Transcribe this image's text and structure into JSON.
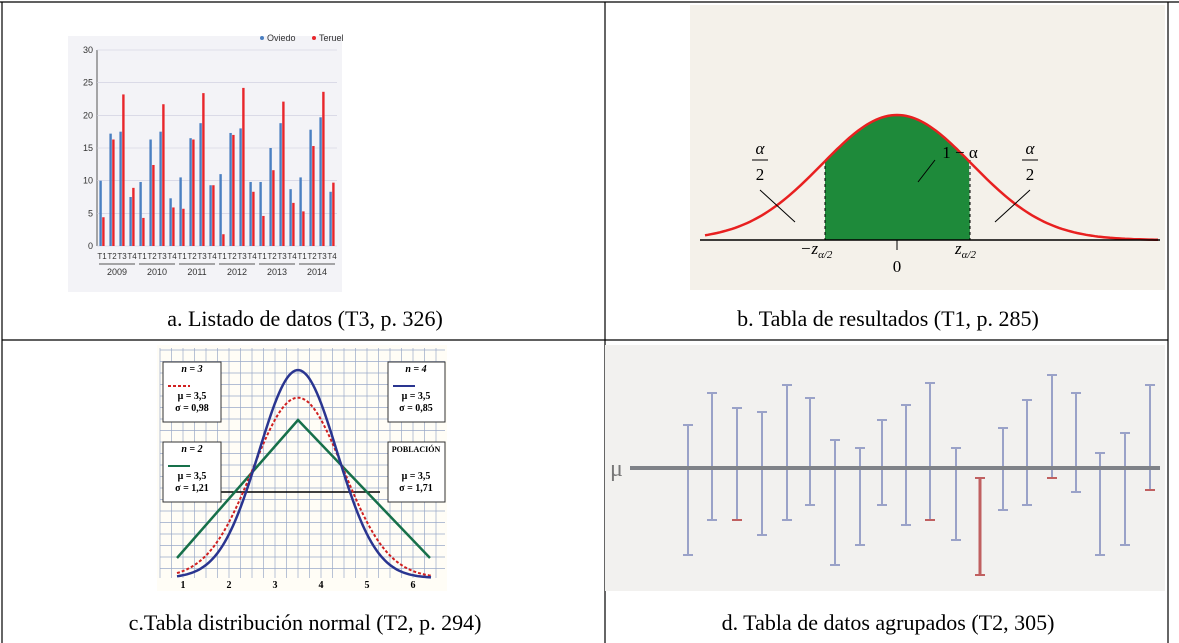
{
  "panels": [
    {
      "caption": "a. Listado de datos (T3, p. 326)",
      "chart": {
        "type": "bar",
        "categories": [
          "T1",
          "T2",
          "T3",
          "T4",
          "T1",
          "T2",
          "T3",
          "T4",
          "T1",
          "T2",
          "T3",
          "T4",
          "T1",
          "T2",
          "T3",
          "T4",
          "T1",
          "T2",
          "T3",
          "T4",
          "T1",
          "T2",
          "T3",
          "T4"
        ],
        "groups": [
          "2009",
          "2010",
          "2011",
          "2012",
          "2013",
          "2014"
        ],
        "series": [
          {
            "name": "Oviedo",
            "color": "#4a7fc1",
            "values": [
              10,
              17.2,
              17.5,
              7.5,
              9.8,
              16.3,
              17.5,
              7.3,
              10.5,
              16.5,
              18.8,
              9.3,
              11,
              17.3,
              18,
              9.8,
              9.8,
              15,
              18.8,
              8.7,
              10.5,
              17.8,
              19.7,
              8.3
            ]
          },
          {
            "name": "Teruel",
            "color": "#e8262b",
            "values": [
              4.4,
              16.3,
              23.2,
              8.9,
              4.3,
              12.4,
              21.7,
              5.9,
              5.7,
              16.3,
              23.4,
              9.3,
              1.8,
              17,
              24.2,
              8.3,
              4.6,
              11.6,
              22.1,
              6.6,
              5.3,
              15.3,
              23.6,
              9.7
            ]
          }
        ],
        "ylim": [
          0,
          30
        ],
        "yticks": [
          0,
          5,
          10,
          15,
          20,
          25,
          30
        ]
      }
    },
    {
      "caption": "b. Tabla de resultados (T1, p. 285)",
      "labels": {
        "alpha_left": "α",
        "two_left": "2",
        "one_minus_alpha": "1 − α",
        "alpha_right": "α",
        "two_right": "2",
        "neg_z": "−z",
        "neg_z_sub": "α/2",
        "zero": "0",
        "z": "z",
        "z_sub": "α/2"
      }
    },
    {
      "caption": "c.Tabla distribución normal (T2, p. 294)",
      "boxes": [
        {
          "n": "n = 3",
          "mu": "μ = 3,5",
          "sigma": "σ = 0,98"
        },
        {
          "n": "n = 4",
          "mu": "μ = 3,5",
          "sigma": "σ = 0,85"
        },
        {
          "n": "n = 2",
          "mu": "μ = 3,5",
          "sigma": "σ = 1,21"
        },
        {
          "n": "POBLACIÓN",
          "mu": "μ = 3,5",
          "sigma": "σ = 1,71"
        }
      ],
      "xticks": [
        1,
        2,
        3,
        4,
        5,
        6
      ]
    },
    {
      "caption": "d. Tabla de datos agrupados (T2, 305)",
      "mu_label": "μ"
    }
  ]
}
